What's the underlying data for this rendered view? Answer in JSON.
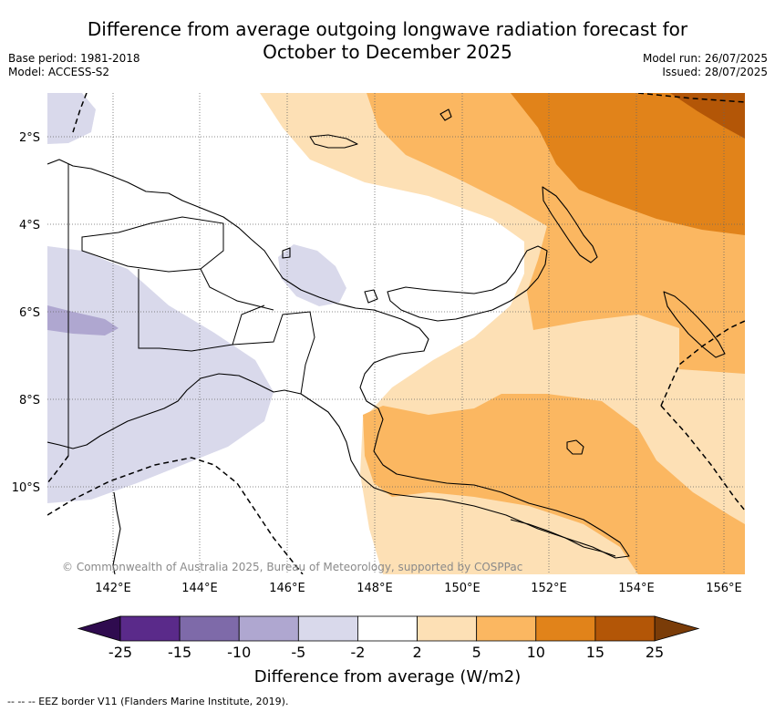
{
  "header": {
    "title_line1": "Difference from average outgoing longwave radiation forecast for",
    "title_line2": "October to December 2025",
    "base_period": "Base period: 1981-2018",
    "model": "Model: ACCESS-S2",
    "model_run": "Model run: 26/07/2025",
    "issued": "Issued: 28/07/2025"
  },
  "map": {
    "lat_labels": [
      "2°S",
      "4°S",
      "6°S",
      "8°S",
      "10°S"
    ],
    "lon_labels": [
      "142°E",
      "144°E",
      "146°E",
      "148°E",
      "150°E",
      "152°E",
      "154°E",
      "156°E"
    ],
    "extent": {
      "lon_min": 140.5,
      "lon_max": 156.5,
      "lat_min": -12.0,
      "lat_max": -1.0
    },
    "copyright": "© Commonwealth of Australia 2025, Bureau of Meteorology, supported by COSPPac"
  },
  "colorbar": {
    "ticks": [
      "-25",
      "-15",
      "-10",
      "-5",
      "-2",
      "2",
      "5",
      "10",
      "15",
      "25"
    ],
    "colors": [
      "#5a2a8a",
      "#7e6aa9",
      "#afa7d0",
      "#d9d9eb",
      "#ffffff",
      "#fde0b5",
      "#fbb761",
      "#e1831a",
      "#b35607"
    ],
    "under_color": "#2f0b4f",
    "over_color": "#7a3c08",
    "title": "Difference from average (W/m2)"
  },
  "footer": {
    "legend_text": "--  --  -- EEZ border V11 (Flanders Marine Institute, 2019)."
  }
}
